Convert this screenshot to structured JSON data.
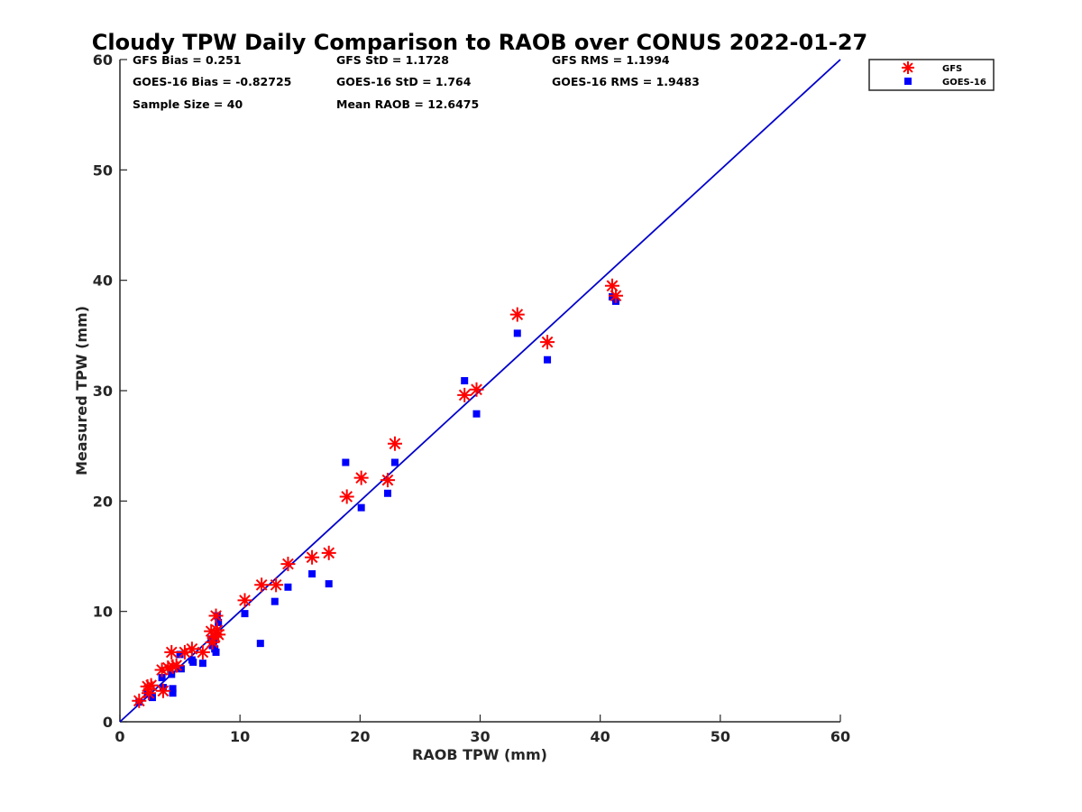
{
  "chart_data": {
    "type": "scatter",
    "title": "Cloudy TPW Daily Comparison to RAOB over CONUS 2022-01-27",
    "xlabel": "RAOB TPW (mm)",
    "ylabel": "Measured TPW (mm)",
    "xlim": [
      0,
      60
    ],
    "ylim": [
      0,
      60
    ],
    "xticks": [
      "0",
      "10",
      "20",
      "30",
      "40",
      "50",
      "60"
    ],
    "yticks": [
      "0",
      "10",
      "20",
      "30",
      "40",
      "50",
      "60"
    ],
    "grid": false,
    "legend_position": "outside-top-right",
    "reference_line": [
      [
        0,
        0
      ],
      [
        60,
        60
      ]
    ],
    "reference_color": "#0000cc",
    "stats": [
      "GFS Bias = 0.251",
      "GFS StD = 1.1728",
      "GFS RMS = 1.1994",
      "GOES-16 Bias = -0.82725",
      "GOES-16 StD = 1.764",
      "GOES-16 RMS = 1.9483",
      "Sample Size = 40",
      "Mean RAOB = 12.6475"
    ],
    "series": [
      {
        "name": "GFS",
        "marker": "asterisk",
        "color": "#ff0000",
        "points": [
          [
            1.6,
            1.9
          ],
          [
            2.3,
            3.2
          ],
          [
            2.6,
            3.3
          ],
          [
            2.4,
            2.6
          ],
          [
            3.5,
            4.7
          ],
          [
            3.6,
            2.8
          ],
          [
            4.0,
            4.9
          ],
          [
            4.3,
            6.3
          ],
          [
            4.4,
            5.0
          ],
          [
            4.7,
            5.1
          ],
          [
            5.4,
            6.3
          ],
          [
            6.0,
            6.6
          ],
          [
            6.9,
            6.3
          ],
          [
            7.6,
            8.2
          ],
          [
            7.7,
            7.2
          ],
          [
            7.9,
            7.7
          ],
          [
            8.0,
            9.6
          ],
          [
            8.1,
            8.3
          ],
          [
            8.2,
            7.9
          ],
          [
            10.4,
            11.0
          ],
          [
            11.8,
            12.4
          ],
          [
            13.0,
            12.4
          ],
          [
            14.0,
            14.3
          ],
          [
            16.0,
            14.9
          ],
          [
            17.4,
            15.3
          ],
          [
            18.9,
            20.4
          ],
          [
            20.1,
            22.1
          ],
          [
            22.3,
            21.9
          ],
          [
            22.9,
            25.2
          ],
          [
            28.7,
            29.6
          ],
          [
            29.7,
            30.1
          ],
          [
            33.1,
            36.9
          ],
          [
            35.6,
            34.4
          ],
          [
            41.0,
            39.5
          ],
          [
            41.3,
            38.6
          ]
        ]
      },
      {
        "name": "GOES-16",
        "marker": "square",
        "color": "#0000ff",
        "points": [
          [
            1.6,
            1.8
          ],
          [
            2.3,
            2.5
          ],
          [
            2.7,
            2.2
          ],
          [
            3.5,
            4.0
          ],
          [
            3.6,
            3.1
          ],
          [
            4.3,
            4.3
          ],
          [
            4.4,
            3.0
          ],
          [
            4.4,
            2.6
          ],
          [
            5.0,
            6.1
          ],
          [
            5.1,
            4.8
          ],
          [
            6.0,
            5.6
          ],
          [
            6.1,
            5.4
          ],
          [
            6.9,
            5.3
          ],
          [
            7.6,
            7.5
          ],
          [
            7.7,
            6.9
          ],
          [
            7.8,
            7.3
          ],
          [
            7.9,
            6.6
          ],
          [
            8.0,
            6.3
          ],
          [
            8.1,
            9.6
          ],
          [
            8.2,
            9.0
          ],
          [
            10.4,
            9.8
          ],
          [
            11.7,
            7.1
          ],
          [
            12.9,
            10.9
          ],
          [
            14.0,
            12.2
          ],
          [
            16.0,
            13.4
          ],
          [
            17.4,
            12.5
          ],
          [
            18.8,
            23.5
          ],
          [
            20.1,
            19.4
          ],
          [
            22.3,
            20.7
          ],
          [
            22.9,
            23.5
          ],
          [
            28.7,
            30.9
          ],
          [
            29.7,
            27.9
          ],
          [
            33.1,
            35.2
          ],
          [
            35.6,
            32.8
          ],
          [
            41.0,
            38.5
          ],
          [
            41.3,
            38.1
          ]
        ]
      }
    ]
  }
}
